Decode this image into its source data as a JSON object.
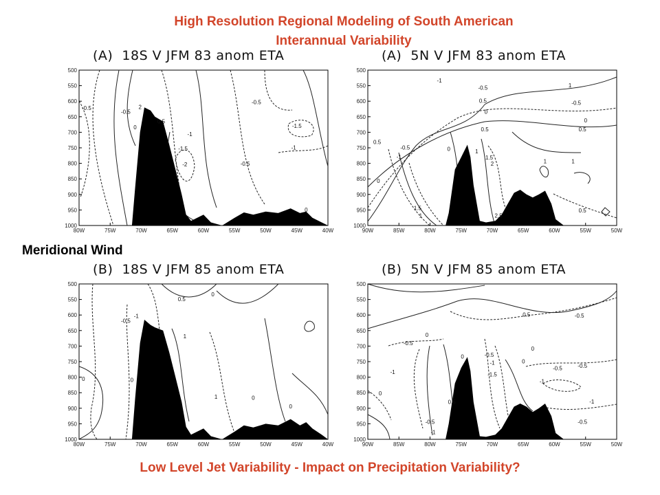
{
  "slide": {
    "title_line1": "High Resolution Regional Modeling of South American",
    "title_line2": "Interannual Variability",
    "side_label": "Meridional Wind",
    "footer": "Low Level Jet Variability - Impact on Precipitation Variability?"
  },
  "colors": {
    "title": "#d2452a",
    "terrain": "#000000"
  },
  "chart_data": [
    {
      "type": "contour",
      "title": "(A)  18S V JFM 83 anom ETA",
      "x_ticks": [
        "80W",
        "75W",
        "70W",
        "65W",
        "60W",
        "55W",
        "50W",
        "45W",
        "40W"
      ],
      "y_ticks": [
        "500",
        "550",
        "600",
        "650",
        "700",
        "750",
        "800",
        "850",
        "900",
        "950",
        "1000"
      ],
      "x_range": [
        -80,
        -40
      ],
      "y_range": [
        1000,
        500
      ],
      "terrain": [
        [
          -80,
          1000
        ],
        [
          -71.5,
          1000
        ],
        [
          -71,
          880
        ],
        [
          -70.2,
          700
        ],
        [
          -69.5,
          620
        ],
        [
          -68.5,
          630
        ],
        [
          -67.8,
          650
        ],
        [
          -66.5,
          665
        ],
        [
          -65.5,
          740
        ],
        [
          -64.5,
          820
        ],
        [
          -63.5,
          900
        ],
        [
          -62.8,
          965
        ],
        [
          -62,
          985
        ],
        [
          -61,
          975
        ],
        [
          -60,
          965
        ],
        [
          -58.8,
          990
        ],
        [
          -57,
          1000
        ],
        [
          -55,
          975
        ],
        [
          -53.5,
          958
        ],
        [
          -52,
          965
        ],
        [
          -50,
          955
        ],
        [
          -48,
          960
        ],
        [
          -46,
          945
        ],
        [
          -44.5,
          960
        ],
        [
          -43.5,
          955
        ],
        [
          -42.5,
          975
        ],
        [
          -41,
          990
        ],
        [
          -40,
          1000
        ]
      ],
      "contour_labels": [
        {
          "x": -78.8,
          "y": 628,
          "t": "-0.5"
        },
        {
          "x": -72.5,
          "y": 640,
          "t": "-0.5"
        },
        {
          "x": -70.2,
          "y": 625,
          "t": "2"
        },
        {
          "x": -71,
          "y": 690,
          "t": "0"
        },
        {
          "x": -66.8,
          "y": 672,
          "t": "0.5"
        },
        {
          "x": -62.2,
          "y": 712,
          "t": "-1"
        },
        {
          "x": -63.3,
          "y": 759,
          "t": "-1.5"
        },
        {
          "x": -63,
          "y": 810,
          "t": "-2"
        },
        {
          "x": -51.5,
          "y": 610,
          "t": "-0.5"
        },
        {
          "x": -45,
          "y": 686,
          "t": "-1.5"
        },
        {
          "x": -45.5,
          "y": 755,
          "t": "-1"
        },
        {
          "x": -53.3,
          "y": 808,
          "t": "-0.5"
        },
        {
          "x": -43.5,
          "y": 956,
          "t": "0"
        }
      ]
    },
    {
      "type": "contour",
      "title": "(A)  5N V JFM 83 anom ETA",
      "x_ticks": [
        "90W",
        "85W",
        "80W",
        "75W",
        "70W",
        "65W",
        "60W",
        "55W",
        "50W"
      ],
      "y_ticks": [
        "500",
        "550",
        "600",
        "650",
        "700",
        "750",
        "800",
        "850",
        "900",
        "950",
        "1000"
      ],
      "x_range": [
        -90,
        -50
      ],
      "y_range": [
        1000,
        500
      ],
      "terrain": [
        [
          -90,
          1000
        ],
        [
          -77.5,
          1000
        ],
        [
          -77,
          960
        ],
        [
          -76,
          820
        ],
        [
          -75,
          780
        ],
        [
          -74,
          740
        ],
        [
          -73.5,
          780
        ],
        [
          -73,
          870
        ],
        [
          -72,
          985
        ],
        [
          -71,
          990
        ],
        [
          -69.5,
          985
        ],
        [
          -68.5,
          965
        ],
        [
          -67.5,
          930
        ],
        [
          -66.5,
          895
        ],
        [
          -65.5,
          885
        ],
        [
          -64.5,
          900
        ],
        [
          -63.5,
          910
        ],
        [
          -62.5,
          900
        ],
        [
          -61.5,
          888
        ],
        [
          -60.5,
          930
        ],
        [
          -59.8,
          980
        ],
        [
          -58.5,
          1000
        ],
        [
          -50,
          1000
        ]
      ],
      "contour_labels": [
        {
          "x": -78.5,
          "y": 540,
          "t": "-1"
        },
        {
          "x": -71.5,
          "y": 563,
          "t": "-0.5"
        },
        {
          "x": -57.5,
          "y": 555,
          "t": "1"
        },
        {
          "x": -71.5,
          "y": 605,
          "t": "0.5"
        },
        {
          "x": -56.5,
          "y": 612,
          "t": "-0.5"
        },
        {
          "x": -71,
          "y": 640,
          "t": "0"
        },
        {
          "x": -55,
          "y": 668,
          "t": "0"
        },
        {
          "x": -71.2,
          "y": 697,
          "t": "0.5"
        },
        {
          "x": -55.5,
          "y": 697,
          "t": "0.5"
        },
        {
          "x": -88.5,
          "y": 738,
          "t": "0.5"
        },
        {
          "x": -84,
          "y": 755,
          "t": "-0.5"
        },
        {
          "x": -85,
          "y": 785,
          "t": "-1"
        },
        {
          "x": -72.5,
          "y": 768,
          "t": "1"
        },
        {
          "x": -70.5,
          "y": 788,
          "t": "1.5"
        },
        {
          "x": -70,
          "y": 808,
          "t": "2"
        },
        {
          "x": -77,
          "y": 760,
          "t": "0"
        },
        {
          "x": -61.5,
          "y": 800,
          "t": "1"
        },
        {
          "x": -57,
          "y": 800,
          "t": "1"
        },
        {
          "x": -88.3,
          "y": 863,
          "t": "0"
        },
        {
          "x": -55.5,
          "y": 958,
          "t": "0.5"
        },
        {
          "x": -82,
          "y": 950,
          "t": "1.5"
        },
        {
          "x": -81.5,
          "y": 975,
          "t": "1"
        },
        {
          "x": -69,
          "y": 975,
          "t": "2.5"
        }
      ]
    },
    {
      "type": "contour",
      "title": "(B)  18S V JFM 85 anom ETA",
      "x_ticks": [
        "80W",
        "75W",
        "70W",
        "65W",
        "60W",
        "55W",
        "50W",
        "45W",
        "40W"
      ],
      "y_ticks": [
        "500",
        "550",
        "600",
        "650",
        "700",
        "750",
        "800",
        "850",
        "900",
        "950",
        "1000"
      ],
      "x_range": [
        -80,
        -40
      ],
      "y_range": [
        1000,
        500
      ],
      "terrain": [
        [
          -80,
          1000
        ],
        [
          -71.5,
          1000
        ],
        [
          -71,
          870
        ],
        [
          -70.2,
          690
        ],
        [
          -69.5,
          615
        ],
        [
          -68.5,
          632
        ],
        [
          -67.8,
          640
        ],
        [
          -66.5,
          650
        ],
        [
          -65.5,
          720
        ],
        [
          -64.5,
          800
        ],
        [
          -63.5,
          880
        ],
        [
          -62.8,
          960
        ],
        [
          -62,
          985
        ],
        [
          -61,
          975
        ],
        [
          -60,
          965
        ],
        [
          -58.8,
          990
        ],
        [
          -57,
          1000
        ],
        [
          -55,
          975
        ],
        [
          -53.5,
          955
        ],
        [
          -52,
          962
        ],
        [
          -50,
          950
        ],
        [
          -48,
          955
        ],
        [
          -46,
          935
        ],
        [
          -44.5,
          955
        ],
        [
          -43.5,
          945
        ],
        [
          -42.5,
          965
        ],
        [
          -41,
          985
        ],
        [
          -40,
          1000
        ]
      ],
      "contour_labels": [
        {
          "x": -72.5,
          "y": 625,
          "t": "-0.5"
        },
        {
          "x": -70.8,
          "y": 610,
          "t": "-1"
        },
        {
          "x": -63.5,
          "y": 555,
          "t": "0.5"
        },
        {
          "x": -58.5,
          "y": 540,
          "t": "0"
        },
        {
          "x": -63,
          "y": 675,
          "t": "1"
        },
        {
          "x": -79.3,
          "y": 812,
          "t": "0"
        },
        {
          "x": -71.5,
          "y": 815,
          "t": "0"
        },
        {
          "x": -58,
          "y": 870,
          "t": "1"
        },
        {
          "x": -52,
          "y": 873,
          "t": "0"
        },
        {
          "x": -46,
          "y": 900,
          "t": "0"
        }
      ]
    },
    {
      "type": "contour",
      "title": "(B)  5N V JFM 85 anom ETA",
      "x_ticks": [
        "90W",
        "85W",
        "80W",
        "75W",
        "70W",
        "65W",
        "60W",
        "55W",
        "50W"
      ],
      "y_ticks": [
        "500",
        "550",
        "600",
        "650",
        "700",
        "750",
        "800",
        "850",
        "900",
        "950",
        "1000"
      ],
      "x_range": [
        -90,
        -50
      ],
      "y_range": [
        1000,
        500
      ],
      "terrain": [
        [
          -90,
          1000
        ],
        [
          -77.5,
          1000
        ],
        [
          -77,
          950
        ],
        [
          -76,
          820
        ],
        [
          -75,
          770
        ],
        [
          -74,
          735
        ],
        [
          -73.5,
          780
        ],
        [
          -73,
          880
        ],
        [
          -72,
          990
        ],
        [
          -71,
          992
        ],
        [
          -69.5,
          985
        ],
        [
          -68.5,
          965
        ],
        [
          -67.5,
          930
        ],
        [
          -66.5,
          895
        ],
        [
          -65.5,
          885
        ],
        [
          -64.5,
          895
        ],
        [
          -63.5,
          912
        ],
        [
          -62.5,
          900
        ],
        [
          -61.5,
          885
        ],
        [
          -60.5,
          925
        ],
        [
          -59.8,
          980
        ],
        [
          -58.5,
          1000
        ],
        [
          -50,
          1000
        ]
      ],
      "contour_labels": [
        {
          "x": -64.5,
          "y": 605,
          "t": "0.5"
        },
        {
          "x": -56,
          "y": 608,
          "t": "-0.5"
        },
        {
          "x": -80.5,
          "y": 670,
          "t": "0"
        },
        {
          "x": -83.5,
          "y": 697,
          "t": "-0.5"
        },
        {
          "x": -70.5,
          "y": 735,
          "t": "-0.5"
        },
        {
          "x": -74.8,
          "y": 740,
          "t": "0"
        },
        {
          "x": -70,
          "y": 760,
          "t": "-1"
        },
        {
          "x": -63.5,
          "y": 715,
          "t": "0"
        },
        {
          "x": -65,
          "y": 755,
          "t": "0"
        },
        {
          "x": -59.5,
          "y": 778,
          "t": "-0.5"
        },
        {
          "x": -55.5,
          "y": 770,
          "t": "-0.5"
        },
        {
          "x": -86,
          "y": 790,
          "t": "-1"
        },
        {
          "x": -70,
          "y": 798,
          "t": "-1.5"
        },
        {
          "x": -62,
          "y": 820,
          "t": "-1"
        },
        {
          "x": -88,
          "y": 858,
          "t": "0"
        },
        {
          "x": -76.5,
          "y": 886,
          "t": "0.5"
        },
        {
          "x": -54,
          "y": 885,
          "t": "-1"
        },
        {
          "x": -80,
          "y": 950,
          "t": "-0.5"
        },
        {
          "x": -79.5,
          "y": 983,
          "t": "-1"
        },
        {
          "x": -55.5,
          "y": 950,
          "t": "-0.5"
        }
      ]
    }
  ]
}
